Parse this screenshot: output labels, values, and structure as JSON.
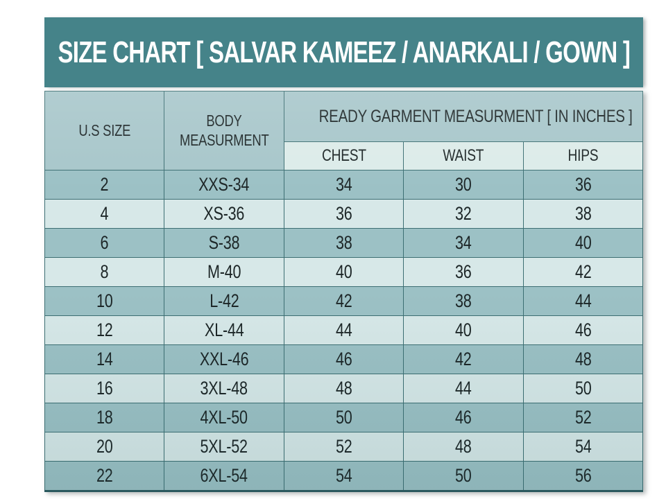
{
  "title": "SIZE CHART [ SALVAR KAMEEZ / ANARKALI / GOWN ]",
  "headers": {
    "us_size": "U.S SIZE",
    "body_measurement": "BODY MEASURMENT",
    "garment_group": "READY GARMENT MEASURMENT [ IN INCHES ]",
    "chest": "CHEST",
    "waist": "WAIST",
    "hips": "HIPS"
  },
  "chart_data": {
    "type": "table",
    "title": "SIZE CHART [ SALVAR KAMEEZ / ANARKALI / GOWN ]",
    "columns": [
      "U.S SIZE",
      "BODY MEASURMENT",
      "CHEST",
      "WAIST",
      "HIPS"
    ],
    "column_group": {
      "label": "READY GARMENT MEASURMENT [ IN INCHES ]",
      "spans": [
        "CHEST",
        "WAIST",
        "HIPS"
      ]
    },
    "rows": [
      [
        "2",
        "XXS-34",
        "34",
        "30",
        "36"
      ],
      [
        "4",
        "XS-36",
        "36",
        "32",
        "38"
      ],
      [
        "6",
        "S-38",
        "38",
        "34",
        "40"
      ],
      [
        "8",
        "M-40",
        "40",
        "36",
        "42"
      ],
      [
        "10",
        "L-42",
        "42",
        "38",
        "44"
      ],
      [
        "12",
        "XL-44",
        "44",
        "40",
        "46"
      ],
      [
        "14",
        "XXL-46",
        "46",
        "42",
        "48"
      ],
      [
        "16",
        "3XL-48",
        "48",
        "44",
        "50"
      ],
      [
        "18",
        "4XL-50",
        "50",
        "46",
        "52"
      ],
      [
        "20",
        "5XL-52",
        "52",
        "48",
        "54"
      ],
      [
        "22",
        "6XL-54",
        "54",
        "50",
        "56"
      ]
    ]
  },
  "colors": {
    "title_bg": "#458389",
    "title_text": "#ffffff",
    "header_bg": "#a7c6ca",
    "subheader_bg": "#dcebe9",
    "row_dark": "#9cc1c5",
    "row_light": "#d7e8e8",
    "border": "#3c6e72"
  }
}
